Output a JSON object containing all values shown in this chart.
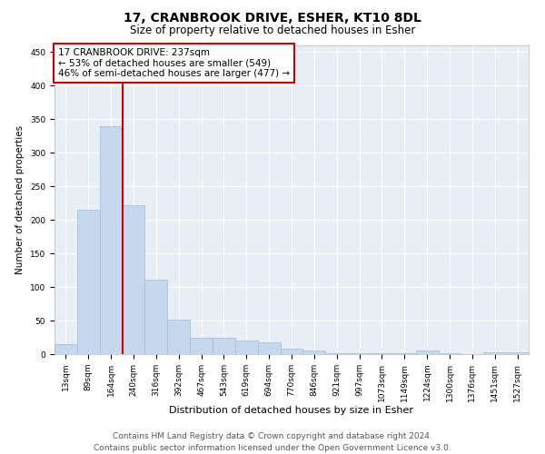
{
  "title": "17, CRANBROOK DRIVE, ESHER, KT10 8DL",
  "subtitle": "Size of property relative to detached houses in Esher",
  "xlabel": "Distribution of detached houses by size in Esher",
  "ylabel": "Number of detached properties",
  "categories": [
    "13sqm",
    "89sqm",
    "164sqm",
    "240sqm",
    "316sqm",
    "392sqm",
    "467sqm",
    "543sqm",
    "619sqm",
    "694sqm",
    "770sqm",
    "846sqm",
    "921sqm",
    "997sqm",
    "1073sqm",
    "1149sqm",
    "1224sqm",
    "1300sqm",
    "1376sqm",
    "1451sqm",
    "1527sqm"
  ],
  "values": [
    15,
    215,
    340,
    222,
    111,
    52,
    25,
    25,
    20,
    18,
    8,
    5,
    1,
    1,
    1,
    1,
    5,
    1,
    0,
    3,
    3
  ],
  "bar_color": "#c5d8ed",
  "bar_edge_color": "#a0bcd8",
  "vline_x_index": 3,
  "vline_color": "#cc0000",
  "annotation_line1": "17 CRANBROOK DRIVE: 237sqm",
  "annotation_line2": "← 53% of detached houses are smaller (549)",
  "annotation_line3": "46% of semi-detached houses are larger (477) →",
  "annotation_box_facecolor": "#ffffff",
  "annotation_box_edgecolor": "#cc0000",
  "ylim": [
    0,
    460
  ],
  "yticks": [
    0,
    50,
    100,
    150,
    200,
    250,
    300,
    350,
    400,
    450
  ],
  "bg_color": "#ffffff",
  "plot_bg_color": "#e8eef5",
  "grid_color": "#ffffff",
  "footer_line1": "Contains HM Land Registry data © Crown copyright and database right 2024.",
  "footer_line2": "Contains public sector information licensed under the Open Government Licence v3.0.",
  "title_fontsize": 10,
  "subtitle_fontsize": 8.5,
  "xlabel_fontsize": 8,
  "ylabel_fontsize": 7.5,
  "tick_fontsize": 6.5,
  "annotation_fontsize": 7.5,
  "footer_fontsize": 6.5
}
